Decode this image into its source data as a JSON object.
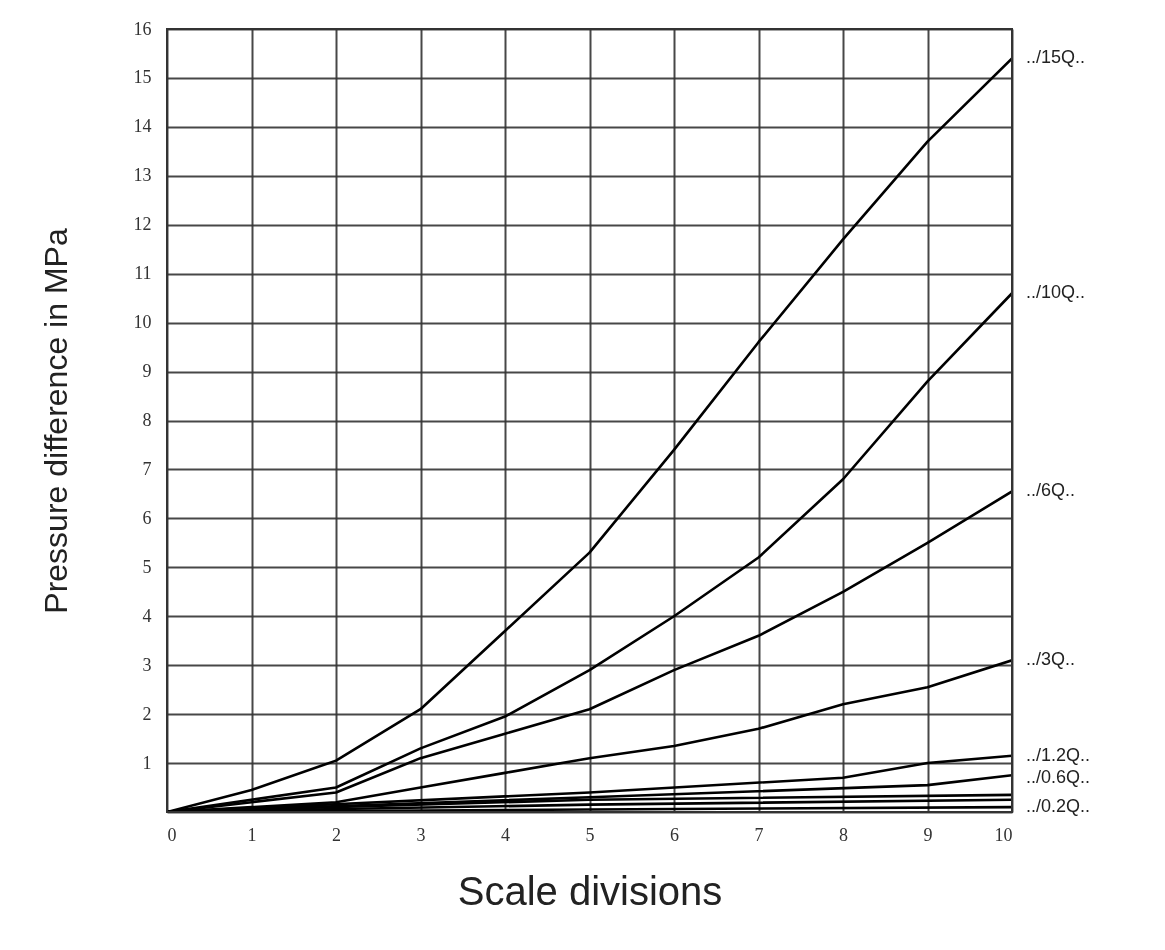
{
  "chart_data": {
    "type": "line",
    "xlabel": "Scale divisions",
    "ylabel": "Pressure difference in MPa",
    "xlim": [
      0,
      10
    ],
    "ylim": [
      0,
      16
    ],
    "xticks": [
      0,
      1,
      2,
      3,
      4,
      5,
      6,
      7,
      8,
      9,
      10
    ],
    "yticks": [
      {
        "value": 0,
        "label": null
      },
      1,
      2,
      3,
      4,
      5,
      6,
      7,
      8,
      9,
      10,
      11,
      12,
      13,
      14,
      15,
      16
    ],
    "grid": true,
    "marker": "none",
    "line_style": "solid",
    "series": [
      {
        "name": "../15Q..",
        "color": "#000000",
        "x": [
          0,
          1,
          2,
          3,
          4,
          5,
          6,
          7,
          8,
          9,
          10
        ],
        "values": [
          0,
          0.45,
          1.05,
          2.1,
          3.7,
          5.3,
          7.4,
          9.6,
          11.7,
          13.7,
          15.4
        ]
      },
      {
        "name": "../10Q..",
        "color": "#000000",
        "x": [
          0,
          2,
          3,
          4,
          5,
          6,
          7,
          8,
          9,
          10
        ],
        "values": [
          0,
          0.5,
          1.3,
          1.95,
          2.9,
          4.0,
          5.2,
          6.8,
          8.8,
          10.6
        ]
      },
      {
        "name": "../6Q..",
        "color": "#000000",
        "x": [
          0,
          2,
          3,
          4,
          5,
          6,
          7,
          8,
          9,
          10
        ],
        "values": [
          0,
          0.4,
          1.1,
          1.6,
          2.1,
          2.9,
          3.6,
          4.5,
          5.5,
          6.55
        ]
      },
      {
        "name": "../3Q..",
        "color": "#000000",
        "x": [
          0,
          2,
          3,
          4,
          5,
          6,
          7,
          8,
          9,
          10
        ],
        "values": [
          0,
          0.2,
          0.5,
          0.8,
          1.1,
          1.35,
          1.7,
          2.2,
          2.55,
          3.1
        ]
      },
      {
        "name": "../1.2Q..",
        "color": "#000000",
        "x": [
          0,
          5,
          8,
          9,
          10
        ],
        "values": [
          0,
          0.4,
          0.7,
          1.0,
          1.15
        ]
      },
      {
        "name": "../0.6Q..",
        "color": "#000000",
        "x": [
          0,
          5,
          9,
          10
        ],
        "values": [
          0,
          0.3,
          0.55,
          0.75
        ]
      },
      {
        "color": "#000000",
        "x": [
          0,
          5,
          10
        ],
        "values": [
          0,
          0.25,
          0.35
        ]
      },
      {
        "color": "#000000",
        "x": [
          0,
          5,
          10
        ],
        "values": [
          0,
          0.15,
          0.25
        ]
      },
      {
        "name": "../0.2Q..",
        "color": "#000000",
        "x": [
          0,
          5,
          10
        ],
        "values": [
          0,
          0.05,
          0.1
        ]
      }
    ]
  }
}
